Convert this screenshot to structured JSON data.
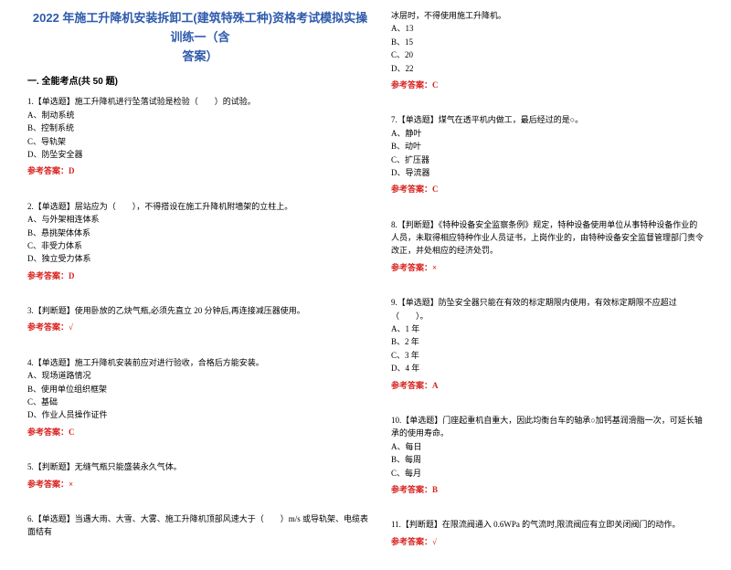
{
  "title_line1": "2022 年施工升降机安装拆卸工(建筑特殊工种)资格考试模拟实操训练一（含",
  "title_line2": "答案）",
  "section_head": "一. 全能考点(共 50 题)",
  "left": {
    "q1": {
      "text": "1.【单选题】施工升降机进行坠落试验是检验（　　）的试验。",
      "a": "A、制动系统",
      "b": "B、控制系统",
      "c": "C、导轨架",
      "d": "D、防坠安全器",
      "ans_label": "参考答案：",
      "ans_val": "D"
    },
    "q2": {
      "text": "2.【单选题】层站应为（　　），不得搭设在施工升降机附墙架的立柱上。",
      "a": "A、与外架相连体系",
      "b": "B、悬挑架体体系",
      "c": "C、非受力体系",
      "d": "D、独立受力体系",
      "ans_label": "参考答案：",
      "ans_val": "D"
    },
    "q3": {
      "text": "3.【判断题】使用卧放的乙炔气瓶,必须先直立 20 分钟后,再连接减压器使用。",
      "ans_label": "参考答案：",
      "ans_val": "√"
    },
    "q4": {
      "text": "4.【单选题】施工升降机安装前应对进行验收，合格后方能安装。",
      "a": "A、现场道路情况",
      "b": "B、使用单位组织框架",
      "c": "C、基础",
      "d": "D、作业人员操作证件",
      "ans_label": "参考答案：",
      "ans_val": "C"
    },
    "q5": {
      "text": "5.【判断题】无缝气瓶只能盛装永久气体。",
      "ans_label": "参考答案：",
      "ans_val": "×"
    },
    "q6": {
      "text": "6.【单选题】当遇大雨、大雪、大雾、施工升降机顶部风速大于（　　）m/s 或导轨架、电缆表面结有"
    }
  },
  "right": {
    "q6b": {
      "text": "冰层时，不得使用施工升降机。",
      "a": "A、13",
      "b": "B、15",
      "c": "C、20",
      "d": "D、22",
      "ans_label": "参考答案：",
      "ans_val": "C"
    },
    "q7": {
      "text": "7.【单选题】煤气在透平机内做工，最后经过的是○。",
      "a": "A、静叶",
      "b": "B、动叶",
      "c": "C、扩压器",
      "d": "D、导流器",
      "ans_label": "参考答案：",
      "ans_val": "C"
    },
    "q8": {
      "text": "8.【判断题】《特种设备安全监察条例》规定，特种设备使用单位从事特种设备作业的人员，未取得相应特种作业人员证书，上岗作业的，由特种设备安全监督管理部门责令改正，并处相应的经济处罚。",
      "ans_label": "参考答案：",
      "ans_val": "×"
    },
    "q9": {
      "text": "9.【单选题】防坠安全器只能在有效的标定期限内使用，有效标定期限不应超过（　　）。",
      "a": "A、1 年",
      "b": "B、2 年",
      "c": "C、3 年",
      "d": "D、4 年",
      "ans_label": "参考答案：",
      "ans_val": "A"
    },
    "q10": {
      "text": "10.【单选题】门座起重机自重大，因此均衡台车的轴承○加钙基润滑脂一次，可延长轴承的使用寿命。",
      "a": "A、每日",
      "b": "B、每周",
      "c": "C、每月",
      "ans_label": "参考答案：",
      "ans_val": "B"
    },
    "q11": {
      "text": "11.【判断题】在限流阀通入 0.6WPa 的气流时,限流阀应有立即关闭阀门的动作。",
      "ans_label": "参考答案：",
      "ans_val": "√"
    }
  }
}
